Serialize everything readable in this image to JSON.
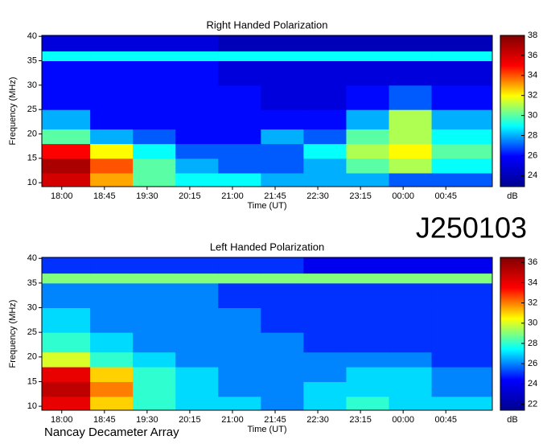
{
  "chart_data": [
    {
      "type": "heatmap",
      "title": "Right Handed Polarization",
      "xlabel": "Time (UT)",
      "ylabel": "Frequency (MHz)",
      "zlabel": "dB",
      "x": [
        -21,
        30,
        75,
        120,
        165,
        210,
        255,
        300,
        345,
        390,
        454
      ],
      "y": [
        9.2,
        12,
        15,
        18,
        21,
        25,
        30,
        35,
        37,
        40.2
      ],
      "z": [
        [
          36,
          33,
          30,
          29,
          29,
          28,
          28,
          28,
          27,
          27
        ],
        [
          37,
          34,
          30,
          28,
          27,
          27,
          28,
          30,
          31,
          29
        ],
        [
          35,
          32,
          29,
          27,
          27,
          27,
          29,
          31,
          32,
          30
        ],
        [
          30,
          28,
          27,
          26,
          26,
          28,
          27,
          30,
          31,
          29
        ],
        [
          28,
          26,
          26,
          26,
          26,
          26,
          26,
          28,
          31,
          28
        ],
        [
          26,
          26,
          26,
          26,
          26,
          25,
          25,
          26,
          27,
          26
        ],
        [
          26,
          26,
          26,
          26,
          25,
          25,
          25,
          25,
          25,
          25
        ],
        [
          29,
          29,
          29,
          29,
          29,
          29,
          29,
          29,
          29,
          29
        ],
        [
          25,
          25,
          25,
          25,
          24,
          24,
          24,
          24,
          24,
          24
        ]
      ],
      "xlim": [
        -21,
        454
      ],
      "ylim": [
        9.2,
        40.2
      ],
      "zlim": [
        22.9,
        38
      ],
      "xticks": [
        {
          "value": 0,
          "label": "18:00"
        },
        {
          "value": 45,
          "label": "18:45"
        },
        {
          "value": 90,
          "label": "19:30"
        },
        {
          "value": 135,
          "label": "20:15"
        },
        {
          "value": 180,
          "label": "21:00"
        },
        {
          "value": 225,
          "label": "21:45"
        },
        {
          "value": 270,
          "label": "22:30"
        },
        {
          "value": 315,
          "label": "23:15"
        },
        {
          "value": 360,
          "label": "00:00"
        },
        {
          "value": 405,
          "label": "00:45"
        }
      ],
      "yticks": [
        10,
        15,
        20,
        25,
        30,
        35,
        40
      ],
      "zticks": [
        24,
        26,
        28,
        30,
        32,
        34,
        36,
        38
      ],
      "colorscale": [
        "#00008f",
        "#0000ff",
        "#00ffff",
        "#ffff00",
        "#ff0000",
        "#800000"
      ]
    },
    {
      "type": "heatmap",
      "title": "Left Handed Polarization",
      "xlabel": "Time (UT)",
      "ylabel": "Frequency (MHz)",
      "zlabel": "dB",
      "x": [
        -21,
        30,
        75,
        120,
        165,
        210,
        255,
        300,
        345,
        390,
        454
      ],
      "y": [
        9.2,
        12,
        15,
        18,
        21,
        25,
        30,
        35,
        37,
        40.2
      ],
      "z": [
        [
          34,
          31,
          28,
          27,
          27,
          26,
          27,
          28,
          27,
          27
        ],
        [
          35,
          32,
          28,
          27,
          26,
          26,
          27,
          27,
          27,
          26
        ],
        [
          34,
          31,
          28,
          27,
          26,
          26,
          26,
          27,
          27,
          26
        ],
        [
          30,
          28,
          27,
          26,
          26,
          26,
          26,
          26,
          26,
          25
        ],
        [
          28,
          27,
          26,
          26,
          26,
          26,
          25,
          25,
          25,
          25
        ],
        [
          27,
          26,
          26,
          26,
          26,
          25,
          25,
          25,
          25,
          25
        ],
        [
          26,
          26,
          26,
          26,
          25,
          25,
          25,
          25,
          25,
          25
        ],
        [
          29,
          29,
          29,
          29,
          29,
          29,
          29,
          29,
          29,
          29
        ],
        [
          25,
          25,
          25,
          25,
          25,
          25,
          24,
          24,
          24,
          24
        ]
      ],
      "xlim": [
        -21,
        454
      ],
      "ylim": [
        9.2,
        40.2
      ],
      "zlim": [
        21.4,
        36.5
      ],
      "xticks": [
        {
          "value": 0,
          "label": "18:00"
        },
        {
          "value": 45,
          "label": "18:45"
        },
        {
          "value": 90,
          "label": "19:30"
        },
        {
          "value": 135,
          "label": "20:15"
        },
        {
          "value": 180,
          "label": "21:00"
        },
        {
          "value": 225,
          "label": "21:45"
        },
        {
          "value": 270,
          "label": "22:30"
        },
        {
          "value": 315,
          "label": "23:15"
        },
        {
          "value": 360,
          "label": "00:00"
        },
        {
          "value": 405,
          "label": "00:45"
        }
      ],
      "yticks": [
        10,
        15,
        20,
        25,
        30,
        35,
        40
      ],
      "zticks": [
        22,
        24,
        26,
        28,
        30,
        32,
        34,
        36
      ],
      "colorscale": [
        "#00008f",
        "#0000ff",
        "#00ffff",
        "#ffff00",
        "#ff0000",
        "#800000"
      ]
    }
  ],
  "annotations": [
    "J250103",
    "Nancay Decameter Array"
  ]
}
